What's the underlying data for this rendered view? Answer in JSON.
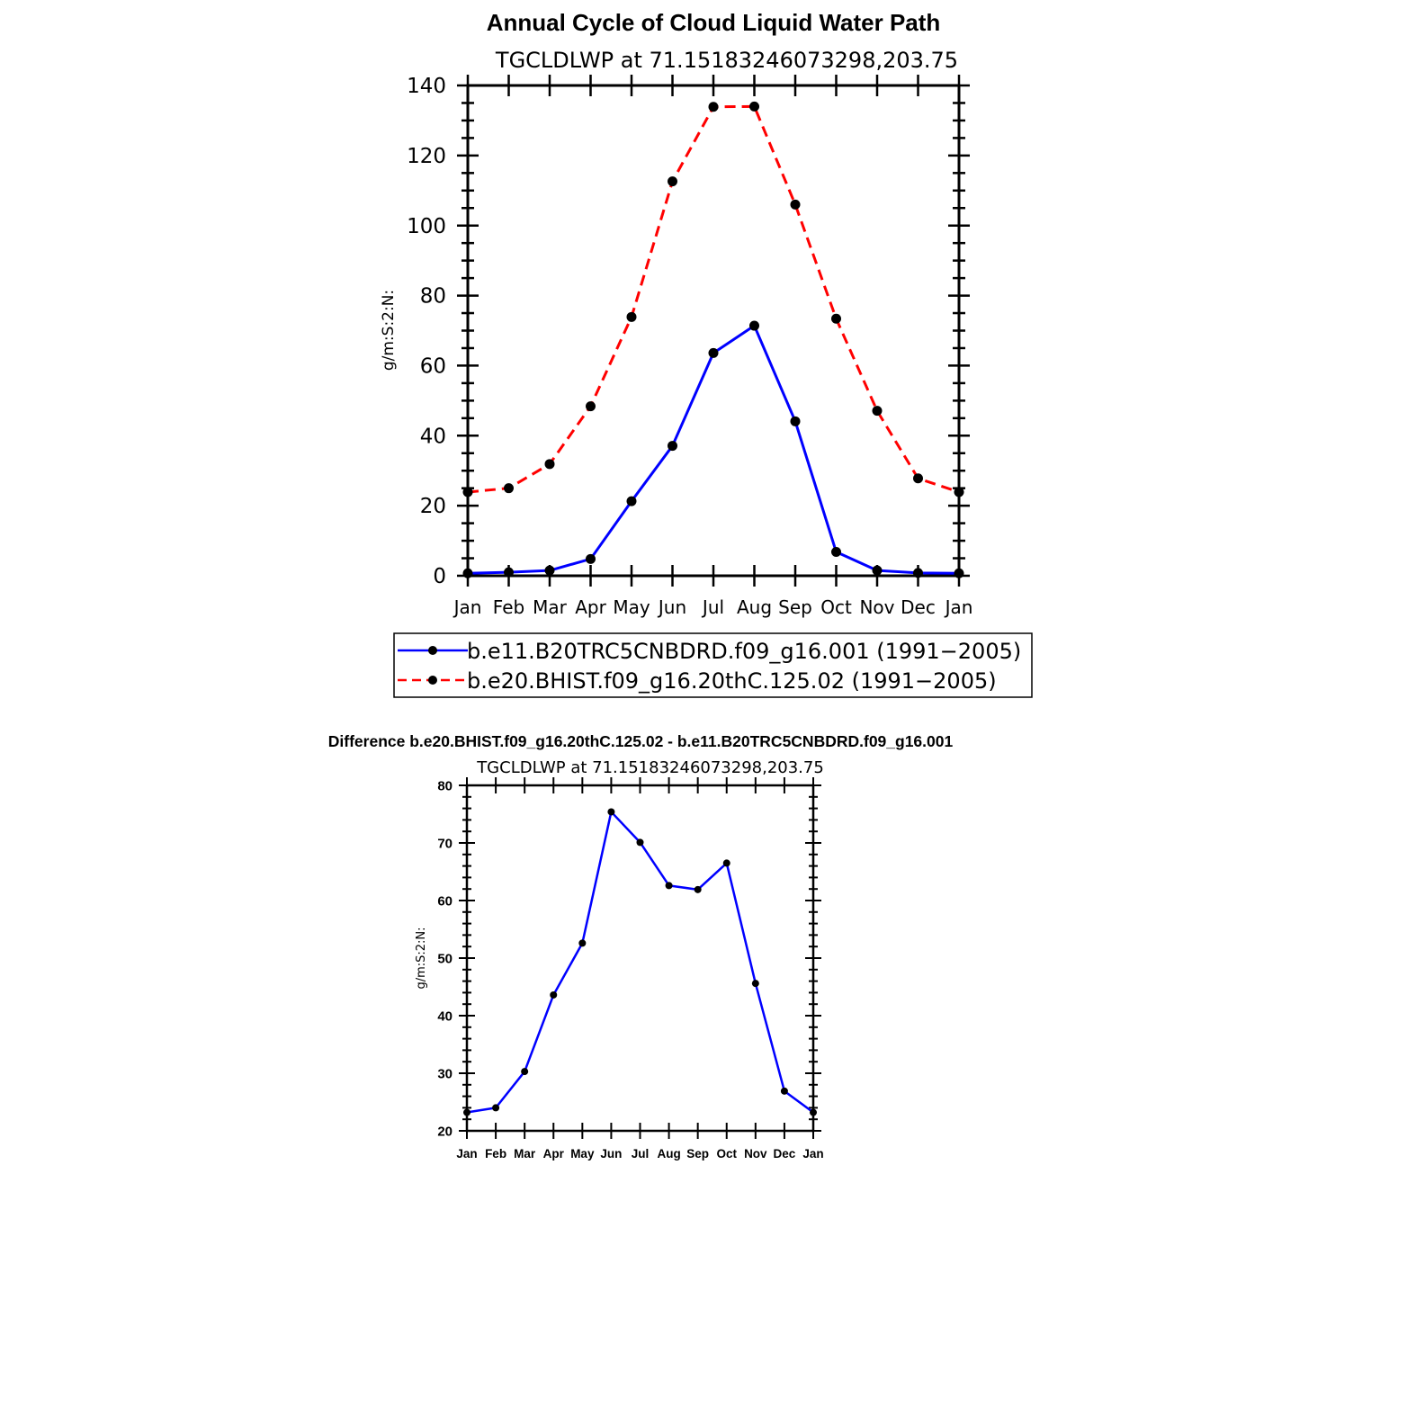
{
  "chart_data": [
    {
      "type": "line",
      "title": "Annual Cycle of Cloud Liquid Water Path",
      "subtitle": "TGCLDLWP  at  71.15183246073298,203.75",
      "ylabel": "g/m:S:2:N:",
      "xlabel": "",
      "categories": [
        "Jan",
        "Feb",
        "Mar",
        "Apr",
        "May",
        "Jun",
        "Jul",
        "Aug",
        "Sep",
        "Oct",
        "Nov",
        "Dec",
        "Jan"
      ],
      "ylim": [
        0,
        140
      ],
      "yticks": [
        0,
        20,
        40,
        60,
        80,
        100,
        120,
        140
      ],
      "legend_position": "below",
      "series": [
        {
          "name": "b.e11.B20TRC5CNBDRD.f09_g16.001  (1991−2005)",
          "color": "#0000ff",
          "dash": "solid",
          "values": [
            0.7,
            1.0,
            1.5,
            4.8,
            21.3,
            37.1,
            63.6,
            71.4,
            44.1,
            6.8,
            1.5,
            0.8,
            0.7
          ]
        },
        {
          "name": "b.e20.BHIST.f09_g16.20thC.125.02  (1991−2005)",
          "color": "#ff0000",
          "dash": "dashed",
          "values": [
            23.9,
            25.0,
            31.9,
            48.4,
            73.9,
            112.6,
            133.9,
            134.0,
            106.0,
            73.4,
            47.1,
            27.8,
            23.9
          ]
        }
      ]
    },
    {
      "type": "line",
      "title": "Difference b.e20.BHIST.f09_g16.20thC.125.02 - b.e11.B20TRC5CNBDRD.f09_g16.001",
      "subtitle": "TGCLDLWP  at  71.15183246073298,203.75",
      "ylabel": "g/m:S:2:N:",
      "xlabel": "",
      "categories": [
        "Jan",
        "Feb",
        "Mar",
        "Apr",
        "May",
        "Jun",
        "Jul",
        "Aug",
        "Sep",
        "Oct",
        "Nov",
        "Dec",
        "Jan"
      ],
      "ylim": [
        20,
        80
      ],
      "yticks": [
        20,
        30,
        40,
        50,
        60,
        70,
        80
      ],
      "series": [
        {
          "color": "#0000ff",
          "dash": "solid",
          "values": [
            23.2,
            24.0,
            30.3,
            43.6,
            52.6,
            75.4,
            70.1,
            62.6,
            61.9,
            66.5,
            45.6,
            26.9,
            23.2
          ]
        }
      ]
    }
  ]
}
